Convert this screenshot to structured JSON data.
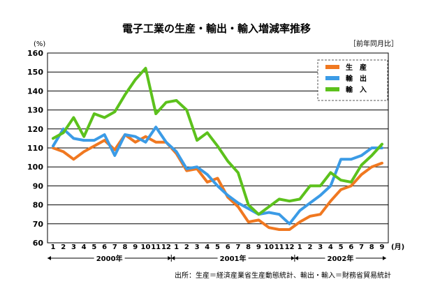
{
  "chart_data": {
    "type": "line",
    "title": "電子工業の生産・輸出・輸入増減率推移",
    "ylabel": "(%)",
    "subtitle": "［前年同月比］",
    "ylim": [
      60,
      160
    ],
    "yticks": [
      60,
      70,
      80,
      90,
      100,
      110,
      120,
      130,
      140,
      150,
      160
    ],
    "x_unit": "(月)",
    "months": [
      "1",
      "2",
      "3",
      "4",
      "5",
      "6",
      "7",
      "8",
      "9",
      "10",
      "11",
      "12",
      "1",
      "2",
      "3",
      "4",
      "5",
      "6",
      "7",
      "8",
      "9",
      "10",
      "11",
      "12",
      "1",
      "2",
      "3",
      "4",
      "5",
      "6",
      "7",
      "8",
      "9"
    ],
    "years": [
      {
        "label": "2000年",
        "start": 0,
        "end": 11
      },
      {
        "label": "2001年",
        "start": 12,
        "end": 23
      },
      {
        "label": "2002年",
        "start": 24,
        "end": 32
      }
    ],
    "series": [
      {
        "name": "生　産",
        "color": "#f07820",
        "values": [
          110,
          108,
          104,
          108,
          111,
          114,
          109,
          117,
          113,
          116,
          113,
          113,
          107,
          98,
          99,
          92,
          94,
          84,
          79,
          71,
          72,
          68,
          67,
          67,
          71,
          74,
          75,
          82,
          88,
          90,
          96,
          100,
          102
        ]
      },
      {
        "name": "輸　出",
        "color": "#3b9be6",
        "values": [
          111,
          120,
          115,
          114,
          114,
          117,
          106,
          117,
          116,
          113,
          121,
          113,
          108,
          99,
          100,
          96,
          90,
          85,
          81,
          78,
          75,
          76,
          75,
          70,
          77,
          81,
          85,
          90,
          104,
          104,
          106,
          110,
          110
        ]
      },
      {
        "name": "輸　入",
        "color": "#5cc11c",
        "values": [
          115,
          118,
          126,
          116,
          128,
          126,
          129,
          138,
          146,
          152,
          128,
          134,
          135,
          130,
          114,
          118,
          111,
          103,
          97,
          80,
          75,
          79,
          83,
          82,
          83,
          90,
          90,
          97,
          93,
          92,
          101,
          106,
          112
        ]
      }
    ],
    "source": "出所：生産＝経済産業省生産動態統計、輸出・輸入＝財務省貿易統計"
  }
}
